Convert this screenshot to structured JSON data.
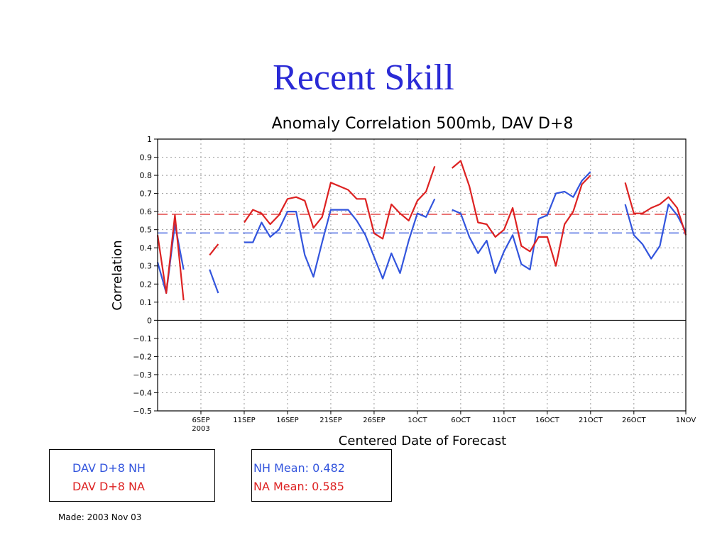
{
  "slide": {
    "title": "Recent Skill"
  },
  "chart_data": {
    "type": "line",
    "title": "Anomaly Correlation 500mb, DAV D+8",
    "xlabel": "Centered Date of Forecast",
    "ylabel": "Correlation",
    "ylim": [
      -0.5,
      1
    ],
    "yticks": [
      "1",
      "0.9",
      "0.8",
      "0.7",
      "0.6",
      "0.5",
      "0.4",
      "0.3",
      "0.2",
      "0.1",
      "0",
      "−0.1",
      "−0.2",
      "−0.3",
      "−0.4",
      "−0.5"
    ],
    "ytick_values": [
      1,
      0.9,
      0.8,
      0.7,
      0.6,
      0.5,
      0.4,
      0.3,
      0.2,
      0.1,
      0,
      -0.1,
      -0.2,
      -0.3,
      -0.4,
      -0.5
    ],
    "xlim": [
      "2003-09-01",
      "2003-11-01"
    ],
    "xticks": [
      {
        "label": "6SEP",
        "sublabel": "2003",
        "date": "2003-09-06"
      },
      {
        "label": "11SEP",
        "date": "2003-09-11"
      },
      {
        "label": "16SEP",
        "date": "2003-09-16"
      },
      {
        "label": "21SEP",
        "date": "2003-09-21"
      },
      {
        "label": "26SEP",
        "date": "2003-09-26"
      },
      {
        "label": "1OCT",
        "date": "2003-10-01"
      },
      {
        "label": "6OCT",
        "date": "2003-10-06"
      },
      {
        "label": "11OCT",
        "date": "2003-10-11"
      },
      {
        "label": "16OCT",
        "date": "2003-10-16"
      },
      {
        "label": "21OCT",
        "date": "2003-10-21"
      },
      {
        "label": "26OCT",
        "date": "2003-10-26"
      },
      {
        "label": "1NOV",
        "date": "2003-11-01"
      }
    ],
    "grid": true,
    "series": [
      {
        "name": "DAV D+8 NH",
        "color": "#3355dd",
        "mean": 0.482,
        "segments": [
          [
            [
              "2003-09-01",
              0.32
            ],
            [
              "2003-09-02",
              0.15
            ],
            [
              "2003-09-03",
              0.53
            ],
            [
              "2003-09-04",
              0.28
            ]
          ],
          [
            [
              "2003-09-07",
              0.28
            ],
            [
              "2003-09-08",
              0.15
            ]
          ],
          [
            [
              "2003-09-11",
              0.43
            ],
            [
              "2003-09-12",
              0.43
            ],
            [
              "2003-09-13",
              0.54
            ],
            [
              "2003-09-14",
              0.46
            ],
            [
              "2003-09-15",
              0.5
            ],
            [
              "2003-09-16",
              0.6
            ],
            [
              "2003-09-17",
              0.6
            ],
            [
              "2003-09-18",
              0.36
            ],
            [
              "2003-09-19",
              0.24
            ],
            [
              "2003-09-20",
              0.43
            ],
            [
              "2003-09-21",
              0.61
            ],
            [
              "2003-09-22",
              0.61
            ],
            [
              "2003-09-23",
              0.61
            ],
            [
              "2003-09-24",
              0.55
            ],
            [
              "2003-09-25",
              0.47
            ],
            [
              "2003-09-26",
              0.35
            ],
            [
              "2003-09-27",
              0.23
            ],
            [
              "2003-09-28",
              0.37
            ],
            [
              "2003-09-29",
              0.26
            ],
            [
              "2003-09-30",
              0.44
            ],
            [
              "2003-10-01",
              0.59
            ],
            [
              "2003-10-02",
              0.57
            ],
            [
              "2003-10-03",
              0.67
            ]
          ],
          [
            [
              "2003-10-05",
              0.61
            ],
            [
              "2003-10-06",
              0.59
            ],
            [
              "2003-10-07",
              0.46
            ],
            [
              "2003-10-08",
              0.37
            ],
            [
              "2003-10-09",
              0.44
            ],
            [
              "2003-10-10",
              0.26
            ],
            [
              "2003-10-11",
              0.38
            ],
            [
              "2003-10-12",
              0.47
            ],
            [
              "2003-10-13",
              0.31
            ],
            [
              "2003-10-14",
              0.28
            ],
            [
              "2003-10-15",
              0.56
            ],
            [
              "2003-10-16",
              0.58
            ],
            [
              "2003-10-17",
              0.7
            ],
            [
              "2003-10-18",
              0.71
            ],
            [
              "2003-10-19",
              0.68
            ],
            [
              "2003-10-20",
              0.77
            ],
            [
              "2003-10-21",
              0.82
            ]
          ],
          [
            [
              "2003-10-25",
              0.64
            ],
            [
              "2003-10-26",
              0.47
            ],
            [
              "2003-10-27",
              0.42
            ],
            [
              "2003-10-28",
              0.34
            ],
            [
              "2003-10-29",
              0.41
            ],
            [
              "2003-10-30",
              0.64
            ],
            [
              "2003-10-31",
              0.58
            ],
            [
              "2003-11-01",
              0.49
            ]
          ]
        ]
      },
      {
        "name": "DAV D+8 NA",
        "color": "#dd2222",
        "mean": 0.585,
        "segments": [
          [
            [
              "2003-09-01",
              0.47
            ],
            [
              "2003-09-02",
              0.15
            ],
            [
              "2003-09-03",
              0.58
            ],
            [
              "2003-09-04",
              0.11
            ]
          ],
          [
            [
              "2003-09-07",
              0.36
            ],
            [
              "2003-09-08",
              0.42
            ]
          ],
          [
            [
              "2003-09-11",
              0.54
            ],
            [
              "2003-09-12",
              0.61
            ],
            [
              "2003-09-13",
              0.59
            ],
            [
              "2003-09-14",
              0.53
            ],
            [
              "2003-09-15",
              0.58
            ],
            [
              "2003-09-16",
              0.67
            ],
            [
              "2003-09-17",
              0.68
            ],
            [
              "2003-09-18",
              0.66
            ],
            [
              "2003-09-19",
              0.51
            ],
            [
              "2003-09-20",
              0.57
            ],
            [
              "2003-09-21",
              0.76
            ],
            [
              "2003-09-22",
              0.74
            ],
            [
              "2003-09-23",
              0.72
            ],
            [
              "2003-09-24",
              0.67
            ],
            [
              "2003-09-25",
              0.67
            ],
            [
              "2003-09-26",
              0.48
            ],
            [
              "2003-09-27",
              0.45
            ],
            [
              "2003-09-28",
              0.64
            ],
            [
              "2003-09-29",
              0.59
            ],
            [
              "2003-09-30",
              0.55
            ],
            [
              "2003-10-01",
              0.66
            ],
            [
              "2003-10-02",
              0.71
            ],
            [
              "2003-10-03",
              0.85
            ]
          ],
          [
            [
              "2003-10-05",
              0.84
            ],
            [
              "2003-10-06",
              0.88
            ],
            [
              "2003-10-07",
              0.74
            ],
            [
              "2003-10-08",
              0.54
            ],
            [
              "2003-10-09",
              0.53
            ],
            [
              "2003-10-10",
              0.46
            ],
            [
              "2003-10-11",
              0.5
            ],
            [
              "2003-10-12",
              0.62
            ],
            [
              "2003-10-13",
              0.41
            ],
            [
              "2003-10-14",
              0.38
            ],
            [
              "2003-10-15",
              0.46
            ],
            [
              "2003-10-16",
              0.46
            ],
            [
              "2003-10-17",
              0.3
            ],
            [
              "2003-10-18",
              0.53
            ],
            [
              "2003-10-19",
              0.6
            ],
            [
              "2003-10-20",
              0.75
            ],
            [
              "2003-10-21",
              0.8
            ]
          ],
          [
            [
              "2003-10-25",
              0.76
            ],
            [
              "2003-10-26",
              0.59
            ],
            [
              "2003-10-27",
              0.59
            ],
            [
              "2003-10-28",
              0.62
            ],
            [
              "2003-10-29",
              0.64
            ],
            [
              "2003-10-30",
              0.68
            ],
            [
              "2003-10-31",
              0.62
            ],
            [
              "2003-11-01",
              0.47
            ]
          ]
        ]
      }
    ]
  },
  "legend": {
    "nh_label": "DAV D+8 NH",
    "na_label": "DAV D+8 NA"
  },
  "means": {
    "nh_text": "NH Mean: 0.482",
    "na_text": "NA Mean: 0.585"
  },
  "footer": {
    "made": "Made: 2003 Nov 03"
  }
}
